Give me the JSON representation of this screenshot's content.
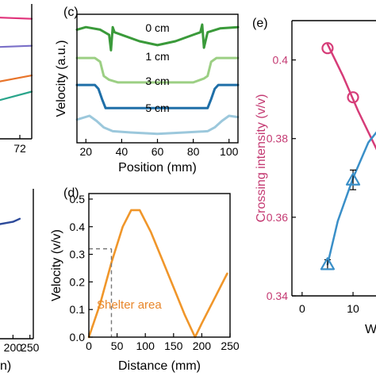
{
  "chart_data": [
    {
      "panel_label": "",
      "type": "line",
      "title": "",
      "xlabel": "",
      "ylabel": "",
      "x_ticks": [
        "72"
      ],
      "xlim": [
        64,
        76
      ],
      "ylim": [
        0,
        10
      ],
      "series": [
        {
          "color": "#e0327a",
          "x": [
            64,
            76
          ],
          "y": [
            9.0,
            8.9
          ]
        },
        {
          "color": "#7a6fc8",
          "x": [
            64,
            76
          ],
          "y": [
            6.8,
            6.9
          ]
        },
        {
          "color": "#e8742a",
          "x": [
            64,
            76
          ],
          "y": [
            4.2,
            4.7
          ]
        },
        {
          "color": "#2aa58b",
          "x": [
            64,
            76
          ],
          "y": [
            2.8,
            3.5
          ]
        }
      ]
    },
    {
      "panel_label": "(c)",
      "type": "line",
      "title": "",
      "xlabel": "Position (mm)",
      "ylabel": "Velocity (a.u.)",
      "x_ticks": [
        20,
        40,
        60,
        80,
        100
      ],
      "xlim": [
        15,
        105
      ],
      "ylim": [
        0,
        100
      ],
      "series": [
        {
          "name": "0 cm",
          "color": "#3a9a3a",
          "x": [
            15,
            20,
            28,
            33,
            34,
            35,
            36,
            40,
            50,
            60,
            70,
            80,
            84,
            85,
            86,
            88,
            95,
            105
          ],
          "y": [
            88,
            90,
            88,
            84,
            72,
            90,
            86,
            84,
            79,
            76,
            79,
            84,
            86,
            92,
            74,
            86,
            89,
            90
          ]
        },
        {
          "name": "1 cm",
          "color": "#9ccf84",
          "x": [
            15,
            25,
            28,
            30,
            33,
            38,
            60,
            80,
            86,
            88,
            90,
            93,
            105
          ],
          "y": [
            66,
            66,
            63,
            52,
            49,
            47,
            47,
            47,
            50,
            52,
            63,
            66,
            66
          ]
        },
        {
          "name": "3 cm",
          "color": "#1f6fa8",
          "x": [
            15,
            25,
            27,
            29,
            31,
            50,
            70,
            88,
            90,
            92,
            94,
            105
          ],
          "y": [
            45,
            45,
            42,
            34,
            27,
            27,
            27,
            27,
            34,
            42,
            45,
            45
          ]
        },
        {
          "name": "5 cm",
          "color": "#9cc8dc",
          "x": [
            15,
            22,
            26,
            30,
            35,
            45,
            60,
            75,
            88,
            92,
            96,
            100,
            105
          ],
          "y": [
            18,
            21,
            17,
            12,
            9,
            8,
            7,
            8,
            9,
            12,
            17,
            21,
            20
          ]
        }
      ]
    },
    {
      "panel_label": "(e)",
      "type": "line",
      "title": "",
      "xlabel": "W",
      "ylabel": "Crossing intensity (v/v)",
      "x_ticks": [
        0,
        10
      ],
      "y_ticks": [
        0.34,
        0.36,
        0.38,
        0.4
      ],
      "xlim": [
        -2,
        17
      ],
      "ylim": [
        0.34,
        0.41
      ],
      "series": [
        {
          "color": "#d63c78",
          "marker": "circle",
          "x": [
            5,
            10,
            17
          ],
          "y": [
            0.403,
            0.3905,
            0.372
          ],
          "fit_x": [
            5,
            8,
            11,
            14,
            17
          ],
          "fit_y": [
            0.404,
            0.396,
            0.387,
            0.379,
            0.371
          ]
        },
        {
          "color": "#3a8fc8",
          "marker": "triangle",
          "x": [
            5,
            10
          ],
          "y": [
            0.348,
            0.3695
          ],
          "err": [
            0.0012,
            0.0025
          ],
          "fit_x": [
            5,
            7,
            10,
            13,
            17
          ],
          "fit_y": [
            0.348,
            0.359,
            0.37,
            0.379,
            0.3855
          ]
        }
      ]
    },
    {
      "panel_label": "",
      "type": "line",
      "title": "",
      "xlabel": "",
      "ylabel": "",
      "x_ticks": [
        200,
        250
      ],
      "xlim": [
        150,
        260
      ],
      "ylim": [
        0,
        10
      ],
      "x_label_fragment": "n)",
      "series": [
        {
          "color": "#2d4a9a",
          "x": [
            150,
            200,
            220
          ],
          "y": [
            7.6,
            7.8,
            8.0
          ]
        }
      ]
    },
    {
      "panel_label": "(d)",
      "type": "line",
      "title": "",
      "xlabel": "Distance (mm)",
      "ylabel": "Velocity (v/v)",
      "x_ticks": [
        0,
        50,
        100,
        150,
        200,
        250
      ],
      "y_ticks": [
        0.0,
        0.1,
        0.2,
        0.3,
        0.4,
        0.5
      ],
      "xlim": [
        0,
        250
      ],
      "ylim": [
        0,
        0.52
      ],
      "annotation": {
        "text": "Shelter area",
        "x": 40,
        "y": 0.32
      },
      "series": [
        {
          "color": "#f0962a",
          "x": [
            0,
            20,
            40,
            60,
            75,
            90,
            110,
            130,
            150,
            170,
            188,
            200,
            220,
            245
          ],
          "y": [
            0.0,
            0.12,
            0.27,
            0.4,
            0.46,
            0.46,
            0.38,
            0.28,
            0.18,
            0.08,
            0.0,
            0.05,
            0.13,
            0.23
          ]
        }
      ]
    }
  ]
}
